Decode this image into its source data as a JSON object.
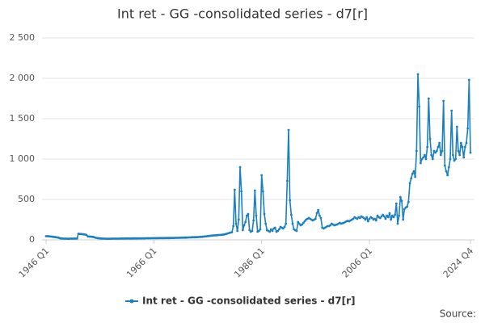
{
  "chart_data": {
    "type": "line",
    "title": "Int ret - GG -consolidated series - d7[r]",
    "source": "Source:",
    "categories": [
      "1946 Q1",
      null,
      null,
      null,
      null,
      null,
      null,
      null,
      null,
      null,
      null,
      null,
      null,
      null,
      null,
      null,
      null,
      null,
      null,
      null,
      null,
      null,
      null,
      null,
      null,
      null,
      null,
      null,
      null,
      null,
      null,
      null,
      null,
      null,
      null,
      null,
      null,
      null,
      null,
      null,
      null,
      null,
      null,
      null,
      null,
      null,
      null,
      null,
      null,
      null,
      null,
      null,
      null,
      null,
      null,
      null,
      null,
      null,
      null,
      null,
      null,
      null,
      null,
      null,
      null,
      null,
      null,
      null,
      null,
      null,
      null,
      null,
      null,
      null,
      null,
      null,
      null,
      null,
      null,
      null,
      "1966 Q1",
      null,
      null,
      null,
      null,
      null,
      null,
      null,
      null,
      null,
      null,
      null,
      null,
      null,
      null,
      null,
      null,
      null,
      null,
      null,
      null,
      null,
      null,
      null,
      null,
      null,
      null,
      null,
      null,
      null,
      null,
      null,
      null,
      null,
      null,
      null,
      null,
      null,
      null,
      null,
      null,
      null,
      null,
      null,
      null,
      null,
      null,
      null,
      null,
      null,
      null,
      null,
      null,
      null,
      null,
      null,
      null,
      null,
      null,
      null,
      null,
      null,
      null,
      null,
      null,
      null,
      null,
      null,
      null,
      null,
      null,
      null,
      null,
      null,
      null,
      null,
      null,
      null,
      null,
      null,
      "1986 Q1",
      null,
      null,
      null,
      null,
      null,
      null,
      null,
      null,
      null,
      null,
      null,
      null,
      null,
      null,
      null,
      null,
      null,
      null,
      null,
      null,
      null,
      null,
      null,
      null,
      null,
      null,
      null,
      null,
      null,
      null,
      null,
      null,
      null,
      null,
      null,
      null,
      null,
      null,
      null,
      null,
      null,
      null,
      null,
      null,
      null,
      null,
      null,
      null,
      null,
      null,
      null,
      null,
      null,
      null,
      null,
      null,
      null,
      null,
      null,
      null,
      null,
      null,
      null,
      null,
      null,
      null,
      null,
      null,
      null,
      null,
      null,
      null,
      null,
      null,
      null,
      null,
      null,
      null,
      null,
      "2006 Q1",
      null,
      null,
      null,
      null,
      null,
      null,
      null,
      null,
      null,
      null,
      null,
      null,
      null,
      null,
      null,
      null,
      null,
      null,
      null,
      null,
      null,
      null,
      null,
      null,
      null,
      null,
      null,
      null,
      null,
      null,
      null,
      null,
      null,
      null,
      null,
      null,
      null,
      null,
      null,
      null,
      null,
      null,
      null,
      null,
      null,
      null,
      null,
      null,
      null,
      null,
      null,
      null,
      null,
      null,
      null,
      null,
      null,
      null,
      null,
      null,
      null,
      null,
      null,
      null,
      null,
      null,
      null,
      null,
      null,
      null,
      null,
      null,
      null,
      null,
      "2024 Q4"
    ],
    "series": [
      {
        "name": "Int ret - GG -consolidated series - d7[r]",
        "color": "#1a80c0",
        "values": [
          45,
          45,
          44,
          42,
          40,
          38,
          35,
          33,
          30,
          28,
          22,
          18,
          16,
          15,
          15,
          15,
          14,
          14,
          15,
          15,
          15,
          16,
          15,
          18,
          75,
          74,
          72,
          70,
          68,
          65,
          60,
          42,
          40,
          40,
          38,
          36,
          30,
          25,
          22,
          20,
          18,
          16,
          15,
          15,
          15,
          14,
          14,
          14,
          14,
          15,
          15,
          15,
          15,
          15,
          15,
          16,
          16,
          16,
          16,
          17,
          17,
          17,
          17,
          17,
          18,
          18,
          18,
          18,
          18,
          19,
          19,
          19,
          19,
          19,
          20,
          20,
          20,
          20,
          20,
          21,
          21,
          21,
          21,
          21,
          22,
          22,
          22,
          22,
          22,
          23,
          23,
          23,
          23,
          24,
          24,
          24,
          25,
          25,
          25,
          26,
          26,
          27,
          27,
          28,
          28,
          29,
          30,
          30,
          31,
          32,
          32,
          33,
          34,
          35,
          36,
          37,
          38,
          40,
          42,
          44,
          46,
          48,
          50,
          52,
          54,
          55,
          56,
          58,
          60,
          60,
          62,
          64,
          66,
          70,
          75,
          80,
          85,
          90,
          95,
          170,
          620,
          200,
          110,
          250,
          900,
          600,
          120,
          180,
          220,
          300,
          320,
          120,
          100,
          110,
          240,
          610,
          300,
          100,
          110,
          130,
          800,
          600,
          320,
          200,
          120,
          110,
          100,
          130,
          110,
          140,
          150,
          100,
          110,
          130,
          160,
          150,
          140,
          160,
          200,
          730,
          1360,
          490,
          310,
          200,
          130,
          120,
          110,
          220,
          200,
          180,
          190,
          210,
          230,
          250,
          260,
          270,
          260,
          250,
          240,
          250,
          260,
          330,
          370,
          300,
          270,
          150,
          140,
          150,
          160,
          170,
          170,
          180,
          200,
          190,
          180,
          185,
          190,
          200,
          210,
          200,
          205,
          210,
          220,
          230,
          235,
          230,
          240,
          250,
          260,
          280,
          270,
          260,
          280,
          270,
          290,
          280,
          270,
          250,
          280,
          230,
          260,
          280,
          270,
          250,
          260,
          240,
          300,
          280,
          270,
          290,
          310,
          290,
          260,
          300,
          280,
          330,
          250,
          300,
          280,
          310,
          450,
          200,
          300,
          530,
          480,
          250,
          380,
          400,
          410,
          470,
          700,
          760,
          820,
          850,
          780,
          1100,
          2050,
          1650,
          950,
          1000,
          1020,
          1050,
          1000,
          1150,
          1750,
          1250,
          1050,
          1000,
          1100,
          1080,
          1100,
          1150,
          1200,
          1050,
          1100,
          1720,
          920,
          850,
          800,
          900,
          1000,
          1600,
          1050,
          980,
          1000,
          1400,
          1100,
          1050,
          1200,
          1150,
          1020,
          1150,
          1200,
          1380,
          1980,
          1080
        ]
      }
    ],
    "ylim": [
      0,
      2500
    ],
    "yticks": [
      0,
      500,
      {
        "value": 1000,
        "label": "1 000"
      },
      {
        "value": 1500,
        "label": "1 500"
      },
      {
        "value": 2000,
        "label": "2 000"
      },
      {
        "value": 2500,
        "label": "2 500"
      }
    ],
    "grid": true
  }
}
